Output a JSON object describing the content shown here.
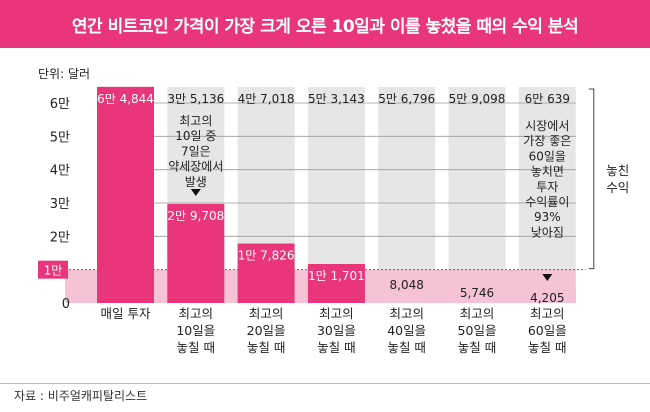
{
  "title": "연간 비트코인 가격이 가장 크게 오른 10일과 이를 놓쳤을 때의 수익 분석",
  "source": "자료 : 비주얼캐피탈리스트",
  "colors": {
    "accent": "#e9357a",
    "accent_light": "#f6c2d6",
    "column_bg": "#e6e6e6",
    "title_bg": "#e9357a"
  },
  "chart_data": {
    "type": "bar",
    "unit_label": "단위: 달러",
    "ylim": [
      0,
      68000
    ],
    "yticks": [
      {
        "value": 0,
        "label": "0"
      },
      {
        "value": 10000,
        "label": "1만"
      },
      {
        "value": 20000,
        "label": "2만"
      },
      {
        "value": 30000,
        "label": "3만"
      },
      {
        "value": 40000,
        "label": "4만"
      },
      {
        "value": 50000,
        "label": "5만"
      },
      {
        "value": 60000,
        "label": "6만"
      }
    ],
    "baseline": 10000,
    "categories": [
      {
        "label": [
          "매일 투자"
        ],
        "value": 64844,
        "value_label": "6만 4,844",
        "missed": null,
        "missed_label": ""
      },
      {
        "label": [
          "최고의",
          "10일을",
          "놓칠 때"
        ],
        "value": 29708,
        "value_label": "2만 9,708",
        "missed": 35136,
        "missed_label": "3만 5,136"
      },
      {
        "label": [
          "최고의",
          "20일을",
          "놓칠 때"
        ],
        "value": 17826,
        "value_label": "1만 7,826",
        "missed": 47018,
        "missed_label": "4만 7,018"
      },
      {
        "label": [
          "최고의",
          "30일을",
          "놓칠 때"
        ],
        "value": 11701,
        "value_label": "1만 1,701",
        "missed": 53143,
        "missed_label": "5만 3,143"
      },
      {
        "label": [
          "최고의",
          "40일을",
          "놓칠 때"
        ],
        "value": 8048,
        "value_label": "8,048",
        "missed": 56796,
        "missed_label": "5만 6,796"
      },
      {
        "label": [
          "최고의",
          "50일을",
          "놓칠 때"
        ],
        "value": 5746,
        "value_label": "5,746",
        "missed": 59098,
        "missed_label": "5만 9,098"
      },
      {
        "label": [
          "최고의",
          "60일을",
          "놓칠 때"
        ],
        "value": 4205,
        "value_label": "4,205",
        "missed": 60639,
        "missed_label": "6만 639"
      }
    ],
    "annotations": [
      {
        "category_index": 1,
        "lines": [
          "최고의",
          "10일 중",
          "7일은",
          "약세장에서",
          "발생"
        ]
      },
      {
        "category_index": 6,
        "lines": [
          "시장에서",
          "가장 좋은",
          "60일을",
          "놓치면",
          "투자",
          "수익률이",
          "93%",
          "낮아짐"
        ]
      }
    ],
    "bracket_label": [
      "놓친",
      "수익"
    ]
  }
}
